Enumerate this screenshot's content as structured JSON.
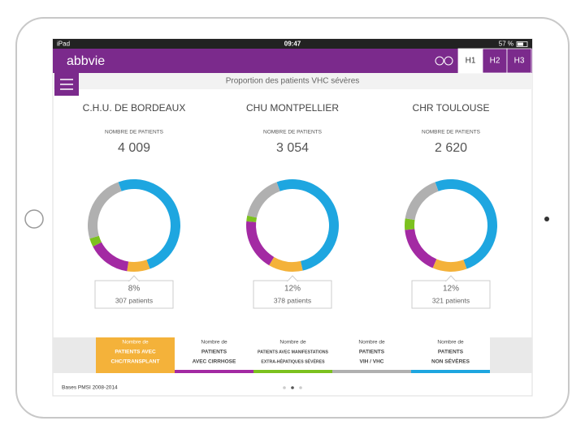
{
  "status_bar": {
    "device": "iPad",
    "time": "09:47",
    "battery": "57 %"
  },
  "header": {
    "logo": "abbvie",
    "tabs": [
      "H1",
      "H2",
      "H3"
    ]
  },
  "subtitle": "Proportion des patients VHC sévères",
  "count_label": "NOMBRE DE PATIENTS",
  "hospitals": [
    {
      "name": "C.H.U. DE BORDEAUX",
      "count": "4 009",
      "segments": [
        8,
        15,
        3,
        24,
        50
      ],
      "percent": "8%",
      "patients": "307 patients"
    },
    {
      "name": "CHU MONTPELLIER",
      "count": "3 054",
      "segments": [
        12,
        18,
        2,
        16,
        52
      ],
      "percent": "12%",
      "patients": "378 patients"
    },
    {
      "name": "CHR TOULOUSE",
      "count": "2 620",
      "segments": [
        12,
        17,
        4,
        17,
        50
      ],
      "percent": "12%",
      "patients": "321 patients"
    }
  ],
  "tabs": [
    {
      "lines": [
        "Nombre de",
        "PATIENTS AVEC",
        "CHC/TRANSPLANT"
      ],
      "color": "#f4b23a"
    },
    {
      "lines": [
        "Nombre de",
        "PATIENTS",
        "AVEC CIRRHOSE"
      ],
      "color": "#a32aa3"
    },
    {
      "lines": [
        "Nombre de",
        "PATIENTS AVEC MANIFESTATIONS",
        "EXTRA-HÉPATIQUES SÉVÈRES"
      ],
      "color": "#7cc11f"
    },
    {
      "lines": [
        "Nombre de",
        "PATIENTS",
        "VIH / VHC"
      ],
      "color": "#b0b0b0"
    },
    {
      "lines": [
        "Nombre de",
        "PATIENTS",
        "NON SÉVÈRES"
      ],
      "color": "#1ea6e0"
    }
  ],
  "footer": "Bases PMSI 2008-2014"
}
